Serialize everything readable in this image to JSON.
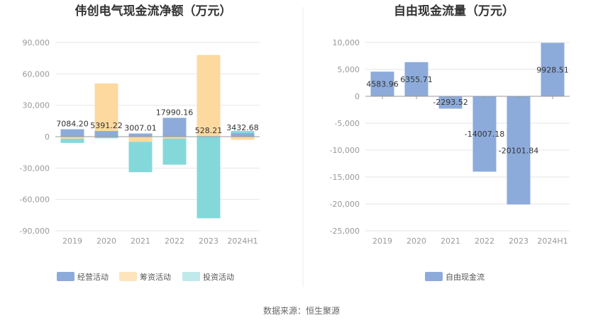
{
  "colors": {
    "operating": "#8cabdb",
    "financing": "#fdd9a0",
    "investing": "#85d8d9",
    "fcf": "#8cabdb",
    "grid": "#e6e6e6",
    "axis": "#999999"
  },
  "source_text": "数据来源：恒生聚源",
  "chart_data": [
    {
      "type": "bar",
      "title": "伟创电气现金流净额（万元）",
      "categories": [
        "2019",
        "2020",
        "2021",
        "2022",
        "2023",
        "2024H1"
      ],
      "y_ticks": [
        "90,000",
        "60,000",
        "30,000",
        "0",
        "-30,000",
        "-60,000",
        "-90,000"
      ],
      "ylim": [
        -90000,
        90000
      ],
      "grid": true,
      "legend_position": "bottom",
      "series": [
        {
          "name": "经营活动",
          "values": [
            7084.2,
            5391.22,
            3007.01,
            17990.16,
            528.21,
            3432.68
          ]
        },
        {
          "name": "筹资活动",
          "values": [
            -2000,
            45500,
            -5000,
            -1800,
            77500,
            -3000
          ]
        },
        {
          "name": "投资活动",
          "values": [
            -4000,
            -1500,
            -29000,
            -25000,
            -78000,
            2000
          ]
        }
      ],
      "data_labels": [
        "7084.20",
        "5391.22",
        "3007.01",
        "17990.16",
        "528.21",
        "3432.68"
      ]
    },
    {
      "type": "bar",
      "title": "自由现金流量（万元）",
      "categories": [
        "2019",
        "2020",
        "2021",
        "2022",
        "2023",
        "2024H1"
      ],
      "y_ticks": [
        "10,000",
        "5,000",
        "0",
        "-5,000",
        "-10,000",
        "-15,000",
        "-20,000",
        "-25,000"
      ],
      "ylim": [
        -25000,
        10000
      ],
      "grid": true,
      "legend_position": "bottom",
      "series": [
        {
          "name": "自由现金流",
          "values": [
            4583.96,
            6355.71,
            -2293.52,
            -14007.18,
            -20101.84,
            9928.51
          ]
        }
      ],
      "data_labels": [
        "4583.96",
        "6355.71",
        "-2293.52",
        "-14007.18",
        "-20101.84",
        "9928.51"
      ]
    }
  ]
}
